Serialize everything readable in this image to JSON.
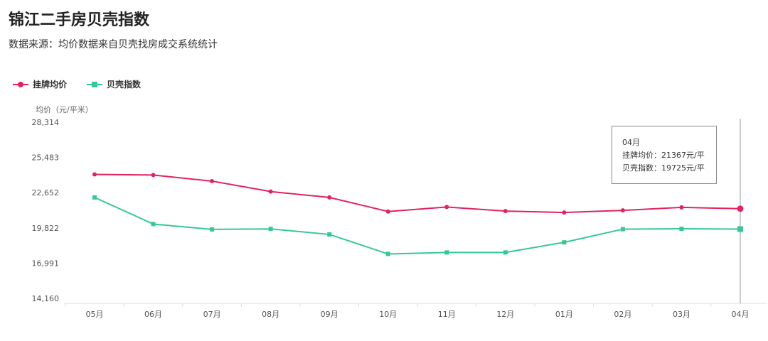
{
  "title": "锦江二手房贝壳指数",
  "subtitle": "数据来源：均价数据来自贝壳找房成交系统统计",
  "legend": [
    {
      "name": "挂牌均价",
      "color": "#e0245e",
      "marker": "circle"
    },
    {
      "name": "贝壳指数",
      "color": "#35c79a",
      "marker": "square"
    }
  ],
  "tooltip": {
    "month": "04月",
    "line1": "挂牌均价：21367元/平",
    "line2": "贝壳指数：19725元/平"
  },
  "chart_data": {
    "type": "line",
    "title": "锦江二手房贝壳指数",
    "ylabel": "均价（元/平米）",
    "categories": [
      "05月",
      "06月",
      "07月",
      "08月",
      "09月",
      "10月",
      "11月",
      "12月",
      "01月",
      "02月",
      "03月",
      "04月"
    ],
    "yticks": [
      "28,314",
      "25,483",
      "22,652",
      "19,822",
      "16,991",
      "14,160"
    ],
    "ylim": [
      14160,
      28314
    ],
    "grid": false,
    "legend_position": "top-left",
    "series": [
      {
        "name": "挂牌均价",
        "color": "#e0245e",
        "values": [
          24120,
          24070,
          23580,
          22740,
          22270,
          21140,
          21500,
          21170,
          21060,
          21230,
          21470,
          21367
        ]
      },
      {
        "name": "贝壳指数",
        "color": "#35c79a",
        "values": [
          22270,
          20130,
          19700,
          19740,
          19300,
          17730,
          17850,
          17850,
          18660,
          19720,
          19750,
          19725
        ]
      }
    ],
    "highlight_index": 11
  }
}
